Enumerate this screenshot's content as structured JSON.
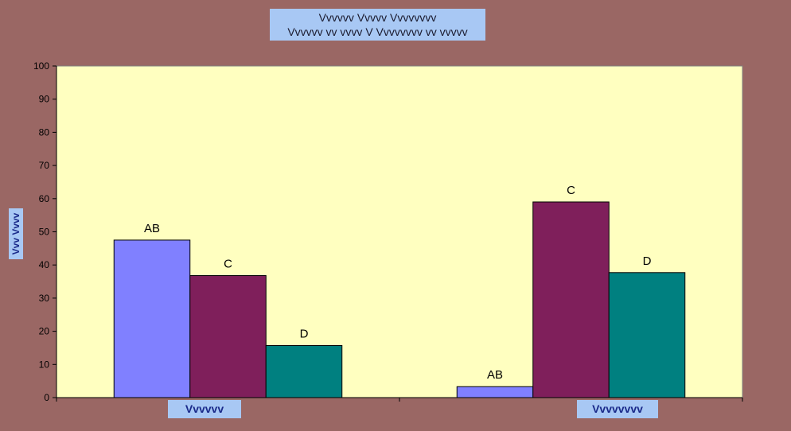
{
  "chart_data": {
    "type": "bar",
    "title": "Vvvvvv Vvvvv Vvvvvvvv",
    "subtitle": "Vvvvvv vv vvvv V Vvvvvvvv vv vvvvv",
    "ylabel": "Vvv Vvvv",
    "xlabel": "",
    "categories": [
      "Vvvvvv",
      "Vvvvvvvv"
    ],
    "ylim": [
      0,
      100
    ],
    "yticks": [
      0,
      10,
      20,
      30,
      40,
      50,
      60,
      70,
      80,
      90,
      100
    ],
    "grid": false,
    "plot_background": "#ffffc0",
    "series": [
      {
        "name": "AB",
        "color": "#8080ff",
        "values": [
          47.5,
          3.3
        ],
        "labels": [
          "AB",
          "AB"
        ]
      },
      {
        "name": "C",
        "color": "#7f1f5b",
        "values": [
          36.8,
          59.0
        ],
        "labels": [
          "C",
          "C"
        ]
      },
      {
        "name": "D",
        "color": "#008080",
        "values": [
          15.7,
          37.7
        ],
        "labels": [
          "D",
          "D"
        ]
      }
    ]
  }
}
